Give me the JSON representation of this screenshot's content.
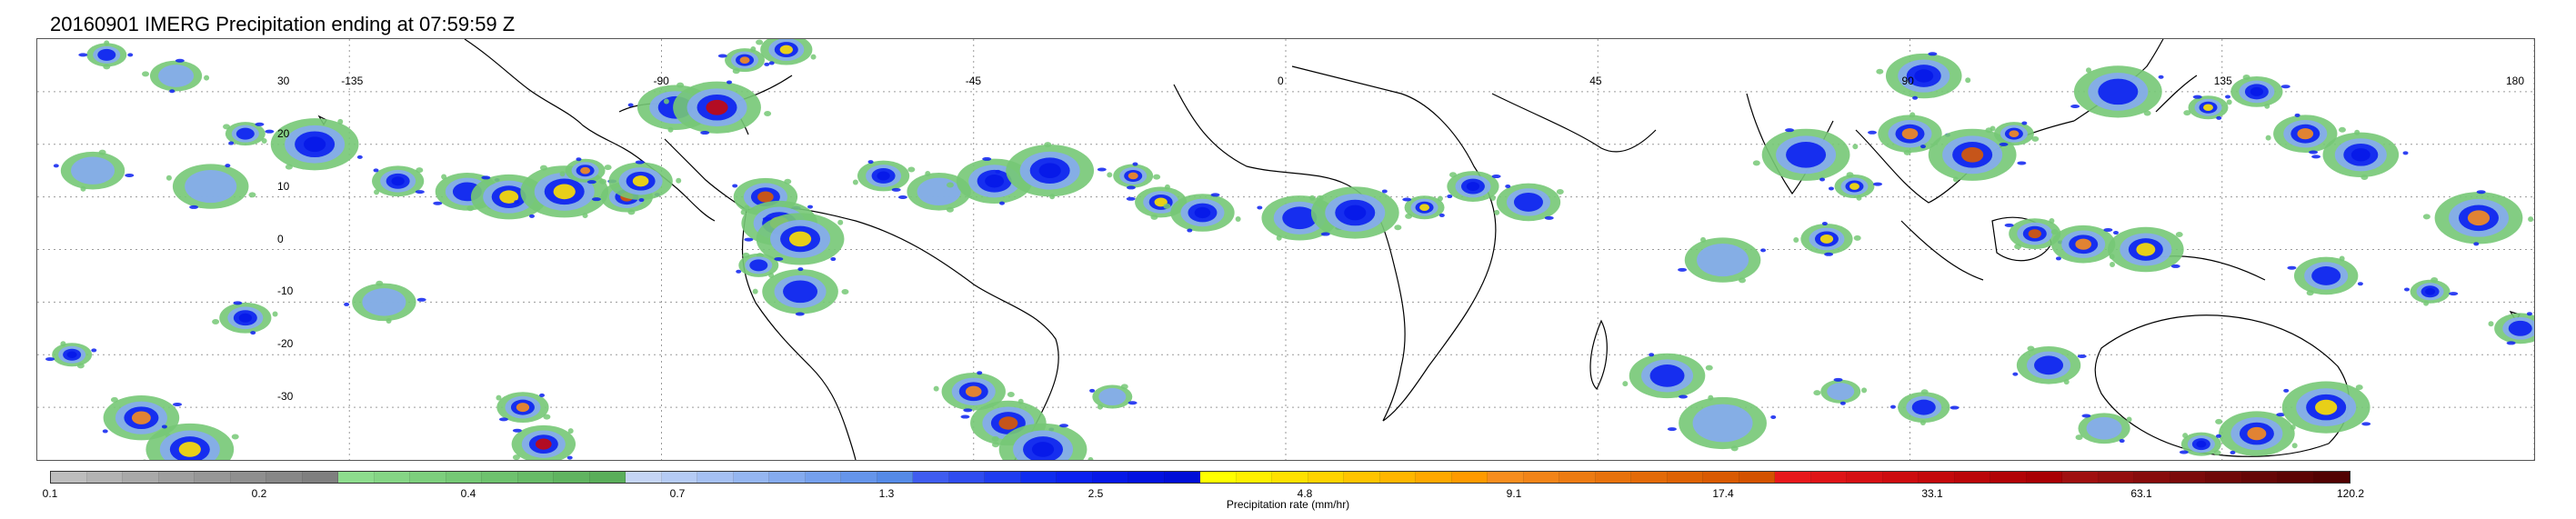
{
  "title": "20160901 IMERG Precipitation ending at 07:59:59 Z",
  "map": {
    "projection": "equirectangular",
    "lon_range": [
      -180,
      180
    ],
    "lat_range": [
      -40,
      40
    ],
    "lon_ticks": [
      {
        "value": -135,
        "label": "-135"
      },
      {
        "value": -90,
        "label": "-90"
      },
      {
        "value": -45,
        "label": "-45"
      },
      {
        "value": 0,
        "label": "0"
      },
      {
        "value": 45,
        "label": "45"
      },
      {
        "value": 90,
        "label": "90"
      },
      {
        "value": 135,
        "label": "135"
      },
      {
        "value": 180,
        "label": "180"
      }
    ],
    "lat_ticks": [
      {
        "value": 30,
        "label": "30"
      },
      {
        "value": 20,
        "label": "20"
      },
      {
        "value": 10,
        "label": "10"
      },
      {
        "value": 0,
        "label": "0"
      },
      {
        "value": -10,
        "label": "-10"
      },
      {
        "value": -20,
        "label": "-20"
      },
      {
        "value": -30,
        "label": "-30"
      }
    ],
    "gridlines": "dotted",
    "coastline_color": "#000000",
    "precip_cells": [
      {
        "lon": -170,
        "lat": 37,
        "rate": 1.3
      },
      {
        "lon": -160,
        "lat": 33,
        "rate": 0.4
      },
      {
        "lon": -172,
        "lat": 15,
        "rate": 0.4
      },
      {
        "lon": -155,
        "lat": 12,
        "rate": 0.7
      },
      {
        "lon": -140,
        "lat": 20,
        "rate": 2.5
      },
      {
        "lon": -150,
        "lat": 22,
        "rate": 1.3
      },
      {
        "lon": -128,
        "lat": 13,
        "rate": 2.5
      },
      {
        "lon": -118,
        "lat": 11,
        "rate": 1.3
      },
      {
        "lon": -112,
        "lat": 10,
        "rate": 4.8
      },
      {
        "lon": -104,
        "lat": 11,
        "rate": 4.8
      },
      {
        "lon": -101,
        "lat": 15,
        "rate": 9.1
      },
      {
        "lon": -95,
        "lat": 10,
        "rate": 17.4
      },
      {
        "lon": -93,
        "lat": 13,
        "rate": 4.8
      },
      {
        "lon": -88,
        "lat": 27,
        "rate": 1.3
      },
      {
        "lon": -82,
        "lat": 27,
        "rate": 33.1
      },
      {
        "lon": -78,
        "lat": 36,
        "rate": 9.1
      },
      {
        "lon": -72,
        "lat": 38,
        "rate": 4.8
      },
      {
        "lon": -75,
        "lat": 10,
        "rate": 17.4
      },
      {
        "lon": -73,
        "lat": 5,
        "rate": 9.1
      },
      {
        "lon": -70,
        "lat": 2,
        "rate": 4.8
      },
      {
        "lon": -76,
        "lat": -3,
        "rate": 1.3
      },
      {
        "lon": -58,
        "lat": 14,
        "rate": 2.5
      },
      {
        "lon": -50,
        "lat": 11,
        "rate": 0.7
      },
      {
        "lon": -42,
        "lat": 13,
        "rate": 2.5
      },
      {
        "lon": -34,
        "lat": 15,
        "rate": 2.5
      },
      {
        "lon": -22,
        "lat": 14,
        "rate": 9.1
      },
      {
        "lon": -18,
        "lat": 9,
        "rate": 4.8
      },
      {
        "lon": -12,
        "lat": 7,
        "rate": 2.5
      },
      {
        "lon": 2,
        "lat": 6,
        "rate": 1.3
      },
      {
        "lon": 10,
        "lat": 7,
        "rate": 2.5
      },
      {
        "lon": 20,
        "lat": 8,
        "rate": 4.8
      },
      {
        "lon": 27,
        "lat": 12,
        "rate": 2.5
      },
      {
        "lon": 35,
        "lat": 9,
        "rate": 1.3
      },
      {
        "lon": 63,
        "lat": -2,
        "rate": 0.4
      },
      {
        "lon": 75,
        "lat": 18,
        "rate": 1.3
      },
      {
        "lon": 82,
        "lat": 12,
        "rate": 4.8
      },
      {
        "lon": 78,
        "lat": 2,
        "rate": 4.8
      },
      {
        "lon": 90,
        "lat": 22,
        "rate": 9.1
      },
      {
        "lon": 92,
        "lat": 33,
        "rate": 2.5
      },
      {
        "lon": 99,
        "lat": 18,
        "rate": 17.4
      },
      {
        "lon": 105,
        "lat": 22,
        "rate": 9.1
      },
      {
        "lon": 108,
        "lat": 3,
        "rate": 17.4
      },
      {
        "lon": 115,
        "lat": 1,
        "rate": 9.1
      },
      {
        "lon": 124,
        "lat": 0,
        "rate": 4.8
      },
      {
        "lon": 120,
        "lat": 30,
        "rate": 1.3
      },
      {
        "lon": 133,
        "lat": 27,
        "rate": 4.8
      },
      {
        "lon": 140,
        "lat": 30,
        "rate": 2.5
      },
      {
        "lon": 147,
        "lat": 22,
        "rate": 9.1
      },
      {
        "lon": 155,
        "lat": 18,
        "rate": 2.5
      },
      {
        "lon": 172,
        "lat": 6,
        "rate": 9.1
      },
      {
        "lon": 165,
        "lat": -8,
        "rate": 2.5
      },
      {
        "lon": 178,
        "lat": -15,
        "rate": 1.3
      },
      {
        "lon": 150,
        "lat": -5,
        "rate": 1.3
      },
      {
        "lon": 140,
        "lat": -35,
        "rate": 9.1
      },
      {
        "lon": 150,
        "lat": -30,
        "rate": 4.8
      },
      {
        "lon": 132,
        "lat": -37,
        "rate": 2.5
      },
      {
        "lon": 118,
        "lat": -34,
        "rate": 0.7
      },
      {
        "lon": 110,
        "lat": -22,
        "rate": 1.3
      },
      {
        "lon": 55,
        "lat": -24,
        "rate": 1.3
      },
      {
        "lon": 63,
        "lat": -33,
        "rate": 0.7
      },
      {
        "lon": 80,
        "lat": -27,
        "rate": 0.7
      },
      {
        "lon": 92,
        "lat": -30,
        "rate": 1.3
      },
      {
        "lon": -45,
        "lat": -27,
        "rate": 9.1
      },
      {
        "lon": -40,
        "lat": -33,
        "rate": 17.4
      },
      {
        "lon": -35,
        "lat": -38,
        "rate": 2.5
      },
      {
        "lon": -25,
        "lat": -28,
        "rate": 0.4
      },
      {
        "lon": -110,
        "lat": -30,
        "rate": 9.1
      },
      {
        "lon": -107,
        "lat": -37,
        "rate": 33.1
      },
      {
        "lon": -165,
        "lat": -32,
        "rate": 9.1
      },
      {
        "lon": -158,
        "lat": -38,
        "rate": 4.8
      },
      {
        "lon": -175,
        "lat": -20,
        "rate": 2.5
      },
      {
        "lon": -150,
        "lat": -13,
        "rate": 2.5
      },
      {
        "lon": -130,
        "lat": -10,
        "rate": 0.7
      },
      {
        "lon": -70,
        "lat": -8,
        "rate": 1.3
      }
    ]
  },
  "colorbar": {
    "colors": [
      "#bdbdbd",
      "#b3b3b3",
      "#a9a9a9",
      "#9f9f9f",
      "#979797",
      "#8f8f8f",
      "#878787",
      "#7f7f7f",
      "#8ddc8d",
      "#85d585",
      "#7dcf7d",
      "#75c875",
      "#6ec26e",
      "#67bb67",
      "#60b460",
      "#5aae5a",
      "#c5d5f5",
      "#b5cbf5",
      "#a5c0f3",
      "#95b6f1",
      "#85abef",
      "#75a0ed",
      "#6595ea",
      "#558ae7",
      "#3f5cf0",
      "#2f4cf0",
      "#1f3cf0",
      "#0f2cf0",
      "#0a20f0",
      "#0618e8",
      "#0312e0",
      "#000ed8",
      "#ffff00",
      "#fff000",
      "#ffe100",
      "#ffd300",
      "#ffc400",
      "#ffb600",
      "#ffa800",
      "#ff9a00",
      "#f78d1e",
      "#f28418",
      "#ed7b12",
      "#e8720c",
      "#e36a08",
      "#de6204",
      "#d95a02",
      "#d45200",
      "#e8181b",
      "#df1417",
      "#d61013",
      "#cd0c0f",
      "#c4090c",
      "#bb0609",
      "#b20306",
      "#a90004",
      "#a01010",
      "#940e0e",
      "#880c0c",
      "#7c0a0a",
      "#700808",
      "#660606",
      "#5c0404",
      "#520202"
    ],
    "ticks": [
      "0.1",
      "0.2",
      "0.4",
      "0.7",
      "1.3",
      "2.5",
      "4.8",
      "9.1",
      "17.4",
      "33.1",
      "63.1",
      "120.2"
    ],
    "label": "Precipitation rate (mm/hr)"
  }
}
